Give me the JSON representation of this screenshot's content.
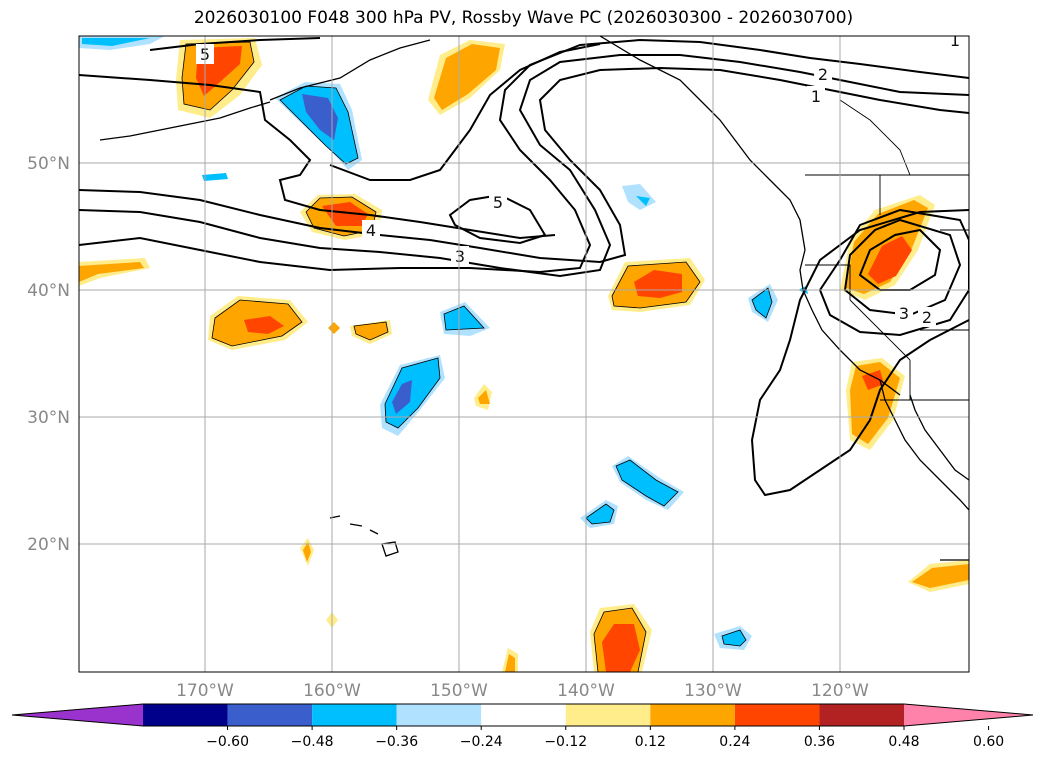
{
  "title": "2026030100 F048 300 hPa PV, Rossby Wave PC (2026030300 - 2026030700)",
  "lat_labels": [
    "50°N",
    "40°N",
    "30°N",
    "20°N"
  ],
  "lon_labels": [
    "170°W",
    "160°W",
    "150°W",
    "140°W",
    "130°W",
    "120°W"
  ],
  "contour_labels": [
    "5",
    "2",
    "1",
    "5",
    "4",
    "3",
    "3",
    "2",
    "1"
  ],
  "colorbar": {
    "colors": [
      "#9a32cd",
      "#00008b",
      "#3a5fcd",
      "#00bfff",
      "#b0e2ff",
      "#ffffff",
      "#ffec8b",
      "#ffa500",
      "#ff4500",
      "#b22222",
      "#ff82ab"
    ],
    "tick_labels": [
      "−0.60",
      "−0.48",
      "−0.36",
      "−0.24",
      "−0.12",
      "0.12",
      "0.24",
      "0.36",
      "0.48",
      "0.60"
    ]
  }
}
